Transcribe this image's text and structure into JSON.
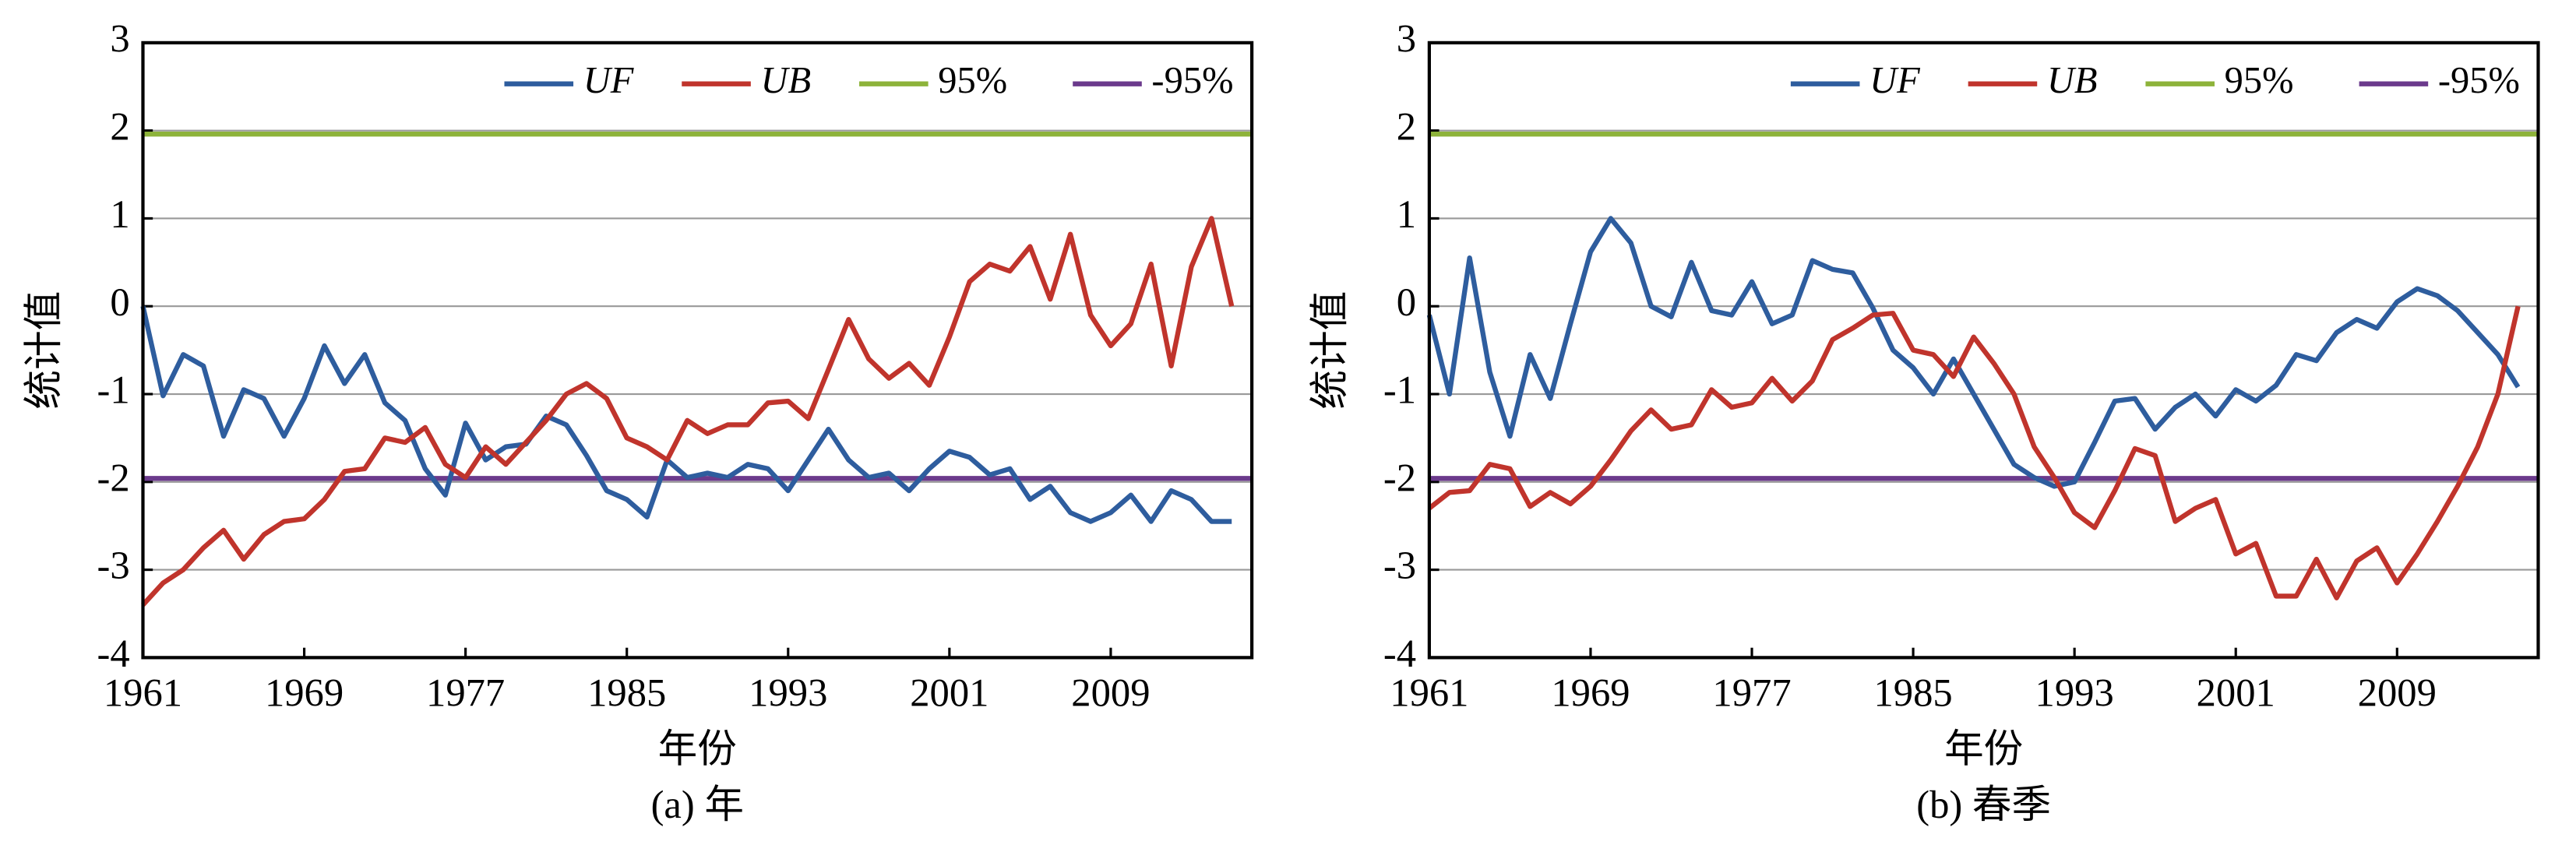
{
  "chart_data": [
    {
      "type": "line",
      "caption": "(a) 年",
      "x_label": "年份",
      "y_label": "统计值",
      "grid": true,
      "legend": "upper right",
      "x": [
        1961,
        1962,
        1963,
        1964,
        1965,
        1966,
        1967,
        1968,
        1969,
        1970,
        1971,
        1972,
        1973,
        1974,
        1975,
        1976,
        1977,
        1978,
        1979,
        1980,
        1981,
        1982,
        1983,
        1984,
        1985,
        1986,
        1987,
        1988,
        1989,
        1990,
        1991,
        1992,
        1993,
        1994,
        1995,
        1996,
        1997,
        1998,
        1999,
        2000,
        2001,
        2002,
        2003,
        2004,
        2005,
        2006,
        2007,
        2008,
        2009,
        2010,
        2011,
        2012,
        2013,
        2014,
        2015
      ],
      "xlim": [
        1961,
        2016
      ],
      "xticks": [
        1961,
        1969,
        1977,
        1985,
        1993,
        2001,
        2009
      ],
      "ylim": [
        -4,
        3
      ],
      "yticks": [
        -4,
        -3,
        -2,
        -1,
        0,
        1,
        2,
        3
      ],
      "series": [
        {
          "name": "UF",
          "color": "#2e5d9e",
          "values": [
            0,
            -1.02,
            -0.55,
            -0.68,
            -1.48,
            -0.95,
            -1.05,
            -1.48,
            -1.05,
            -0.45,
            -0.88,
            -0.55,
            -1.1,
            -1.3,
            -1.85,
            -2.15,
            -1.33,
            -1.75,
            -1.6,
            -1.57,
            -1.25,
            -1.35,
            -1.7,
            -2.1,
            -2.2,
            -2.4,
            -1.75,
            -1.95,
            -1.9,
            -1.95,
            -1.8,
            -1.85,
            -2.1,
            -1.75,
            -1.4,
            -1.75,
            -1.95,
            -1.9,
            -2.1,
            -1.85,
            -1.65,
            -1.72,
            -1.92,
            -1.85,
            -2.2,
            -2.05,
            -2.35,
            -2.45,
            -2.35,
            -2.15,
            -2.45,
            -2.1,
            -2.2,
            -2.45,
            -2.45
          ]
        },
        {
          "name": "UB",
          "color": "#c0342c",
          "values": [
            -3.4,
            -3.15,
            -3.0,
            -2.75,
            -2.55,
            -2.88,
            -2.6,
            -2.45,
            -2.42,
            -2.2,
            -1.88,
            -1.85,
            -1.5,
            -1.55,
            -1.38,
            -1.8,
            -1.95,
            -1.6,
            -1.8,
            -1.55,
            -1.3,
            -1.0,
            -0.88,
            -1.05,
            -1.5,
            -1.6,
            -1.75,
            -1.3,
            -1.45,
            -1.35,
            -1.35,
            -1.1,
            -1.08,
            -1.28,
            -0.72,
            -0.15,
            -0.6,
            -0.82,
            -0.65,
            -0.9,
            -0.35,
            0.28,
            0.48,
            0.4,
            0.68,
            0.08,
            0.82,
            -0.1,
            -0.45,
            -0.2,
            0.48,
            -0.68,
            0.45,
            1.0,
            0.0
          ]
        }
      ],
      "reference_lines": [
        {
          "name": "95%",
          "color": "#8db33a",
          "value": 1.96
        },
        {
          "name": "-95%",
          "color": "#6b3a8c",
          "value": -1.96
        }
      ]
    },
    {
      "type": "line",
      "caption": "(b) 春季",
      "x_label": "年份",
      "y_label": "统计值",
      "grid": true,
      "legend": "upper right",
      "x": [
        1961,
        1962,
        1963,
        1964,
        1965,
        1966,
        1967,
        1968,
        1969,
        1970,
        1971,
        1972,
        1973,
        1974,
        1975,
        1976,
        1977,
        1978,
        1979,
        1980,
        1981,
        1982,
        1983,
        1984,
        1985,
        1986,
        1987,
        1988,
        1989,
        1990,
        1991,
        1992,
        1993,
        1994,
        1995,
        1996,
        1997,
        1998,
        1999,
        2000,
        2001,
        2002,
        2003,
        2004,
        2005,
        2006,
        2007,
        2008,
        2009,
        2010,
        2011,
        2012,
        2013,
        2014,
        2015
      ],
      "xlim": [
        1961,
        2016
      ],
      "xticks": [
        1961,
        1969,
        1977,
        1985,
        1993,
        2001,
        2009
      ],
      "ylim": [
        -4,
        3
      ],
      "yticks": [
        -4,
        -3,
        -2,
        -1,
        0,
        1,
        2,
        3
      ],
      "series": [
        {
          "name": "UF",
          "color": "#2e5d9e",
          "values": [
            -0.1,
            -1.0,
            0.55,
            -0.75,
            -1.48,
            -0.55,
            -1.05,
            -0.2,
            0.62,
            1.0,
            0.72,
            0.0,
            -0.12,
            0.5,
            -0.05,
            -0.1,
            0.28,
            -0.2,
            -0.1,
            0.52,
            0.42,
            0.38,
            -0.02,
            -0.5,
            -0.7,
            -1.0,
            -0.6,
            -1.0,
            -1.4,
            -1.8,
            -1.95,
            -2.05,
            -2.0,
            -1.55,
            -1.08,
            -1.05,
            -1.4,
            -1.15,
            -1.0,
            -1.25,
            -0.95,
            -1.08,
            -0.9,
            -0.55,
            -0.62,
            -0.3,
            -0.15,
            -0.25,
            0.05,
            0.2,
            0.12,
            -0.05,
            -0.3,
            -0.55,
            -0.92
          ]
        },
        {
          "name": "UB",
          "color": "#c0342c",
          "values": [
            -2.3,
            -2.12,
            -2.1,
            -1.8,
            -1.85,
            -2.28,
            -2.12,
            -2.25,
            -2.05,
            -1.75,
            -1.42,
            -1.18,
            -1.4,
            -1.35,
            -0.95,
            -1.15,
            -1.1,
            -0.82,
            -1.08,
            -0.85,
            -0.38,
            -0.25,
            -0.1,
            -0.08,
            -0.5,
            -0.55,
            -0.8,
            -0.35,
            -0.65,
            -1.0,
            -1.6,
            -1.95,
            -2.35,
            -2.52,
            -2.1,
            -1.62,
            -1.7,
            -2.45,
            -2.3,
            -2.2,
            -2.82,
            -2.7,
            -3.3,
            -3.3,
            -2.88,
            -3.32,
            -2.9,
            -2.75,
            -3.15,
            -2.82,
            -2.45,
            -2.05,
            -1.6,
            -1.0,
            0.0
          ]
        }
      ],
      "reference_lines": [
        {
          "name": "95%",
          "color": "#8db33a",
          "value": 1.96
        },
        {
          "name": "-95%",
          "color": "#6b3a8c",
          "value": -1.96
        }
      ]
    }
  ]
}
